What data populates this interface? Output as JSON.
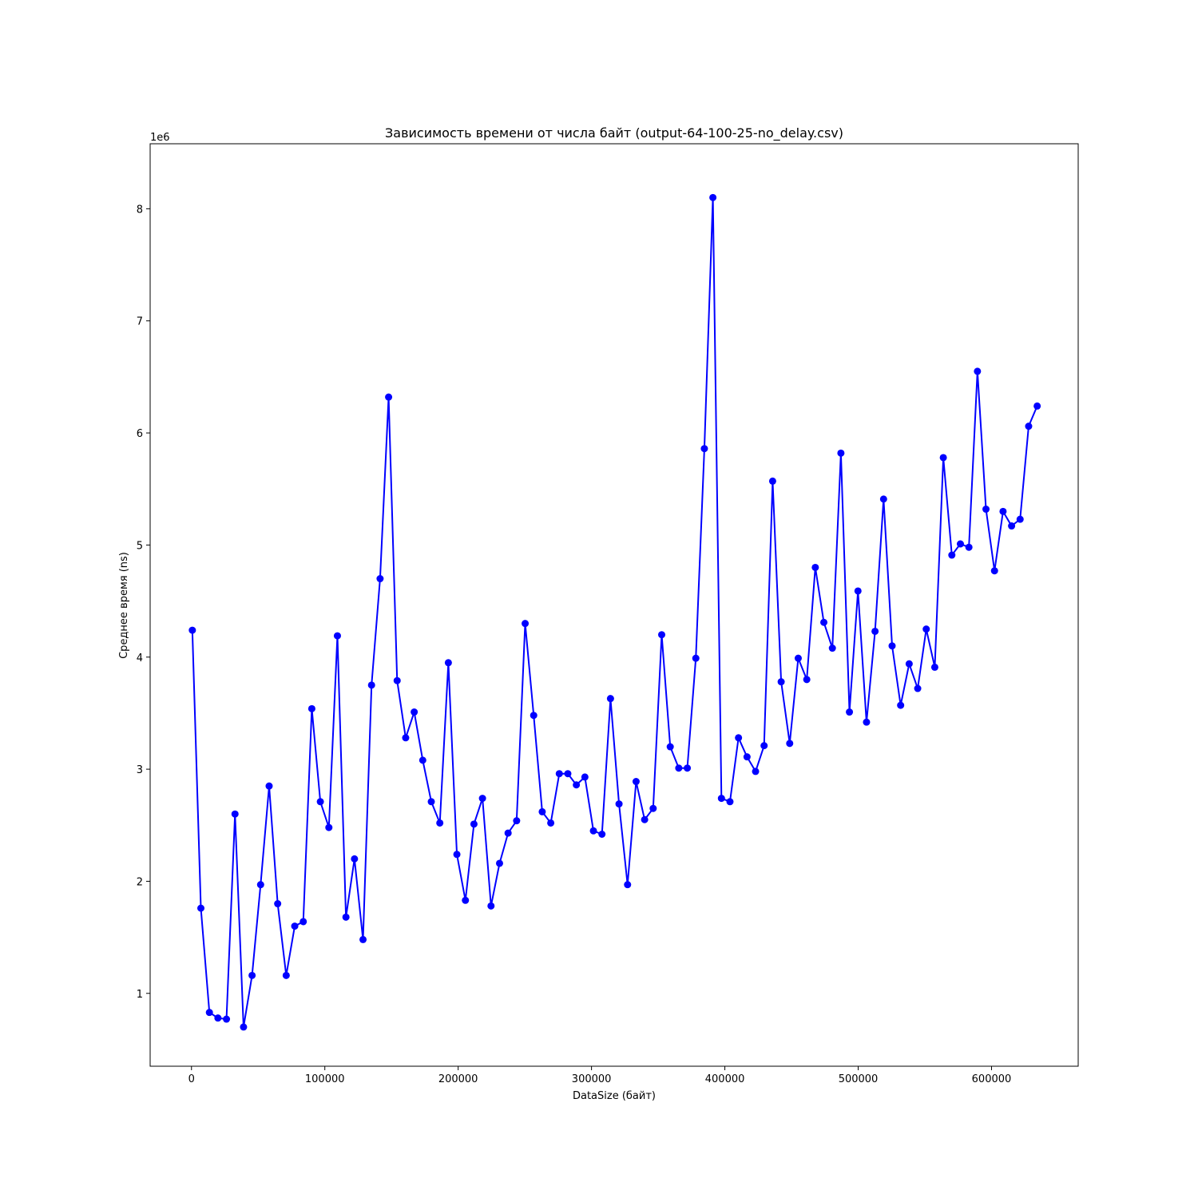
{
  "chart_data": {
    "type": "line",
    "title": "Зависимость времени от числа байт (output-64-100-25-no_delay.csv)",
    "xlabel": "DataSize (байт)",
    "ylabel": "Среднее время (ns)",
    "y_offset_label": "1e6",
    "xlim": [
      -31000,
      665000
    ],
    "ylim": [
      0.35,
      8.58
    ],
    "xticks": [
      0,
      100000,
      200000,
      300000,
      400000,
      500000,
      600000
    ],
    "xtick_labels": [
      "0",
      "100000",
      "200000",
      "300000",
      "400000",
      "500000",
      "600000"
    ],
    "yticks": [
      1,
      2,
      3,
      4,
      5,
      6,
      7,
      8
    ],
    "ytick_labels": [
      "1",
      "2",
      "3",
      "4",
      "5",
      "6",
      "7",
      "8"
    ],
    "grid": false,
    "color": "#0000ff",
    "series": [
      {
        "x": [
          640,
          7040,
          13440,
          19840,
          26240,
          32640,
          39040,
          45440,
          51840,
          58240,
          64640,
          71040,
          77440,
          83840,
          90240,
          96640,
          103040,
          109440,
          115840,
          122240,
          128640,
          135040,
          141440,
          147840,
          154240,
          160640,
          167040,
          173440,
          179840,
          186240,
          192640,
          199040,
          205440,
          211840,
          218240,
          224640,
          231040,
          237440,
          243840,
          250240,
          256640,
          263040,
          269440,
          275840,
          282240,
          288640,
          295040,
          301440,
          307840,
          314240,
          320640,
          327040,
          333440,
          339840,
          346240,
          352640,
          359040,
          365440,
          371840,
          378240,
          384640,
          391040,
          397440,
          403840,
          410240,
          416640,
          423040,
          429440,
          435840,
          442240,
          448640,
          455040,
          461440,
          467840,
          474240,
          480640,
          487040,
          493440,
          499840,
          506240,
          512640,
          519040,
          525440,
          531840,
          538240,
          544640,
          551040,
          557440,
          563840,
          570240,
          576640,
          583040,
          589440,
          595840,
          602240,
          608640,
          615040,
          621440,
          627840,
          634240
        ],
        "y": [
          4.24,
          1.76,
          0.83,
          0.78,
          0.77,
          2.6,
          0.7,
          1.16,
          1.97,
          2.85,
          1.8,
          1.16,
          1.6,
          1.64,
          3.54,
          2.71,
          2.48,
          4.19,
          1.68,
          2.2,
          1.48,
          3.75,
          4.7,
          6.32,
          3.79,
          3.28,
          3.51,
          3.08,
          2.71,
          2.52,
          3.95,
          2.24,
          1.83,
          2.51,
          2.74,
          1.78,
          2.16,
          2.43,
          2.54,
          4.3,
          3.48,
          2.62,
          2.52,
          2.96,
          2.96,
          2.86,
          2.93,
          2.45,
          2.42,
          3.63,
          2.69,
          1.97,
          2.89,
          2.55,
          2.65,
          4.2,
          3.2,
          3.01,
          3.01,
          3.99,
          5.86,
          8.1,
          2.74,
          2.71,
          3.28,
          3.11,
          2.98,
          3.21,
          5.57,
          3.78,
          3.23,
          3.99,
          3.8,
          4.8,
          4.31,
          4.08,
          5.82,
          3.51,
          4.59,
          3.42,
          4.23,
          5.41,
          4.1,
          3.57,
          3.94,
          3.72,
          4.25,
          3.91,
          5.78,
          4.91,
          5.01,
          4.98,
          6.55,
          5.32,
          4.77,
          5.3,
          5.17,
          5.23,
          6.06,
          6.24
        ]
      }
    ]
  }
}
